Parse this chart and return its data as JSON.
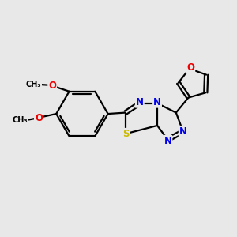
{
  "bg_color": "#e8e8e8",
  "bond_color": "#000000",
  "bond_width": 1.6,
  "atom_colors": {
    "N": "#0000ee",
    "S": "#ccbb00",
    "O": "#ee0000",
    "C": "#000000"
  },
  "font_size_atom": 8.5,
  "font_size_small": 7.0,
  "xlim": [
    0,
    10
  ],
  "ylim": [
    0,
    10
  ]
}
